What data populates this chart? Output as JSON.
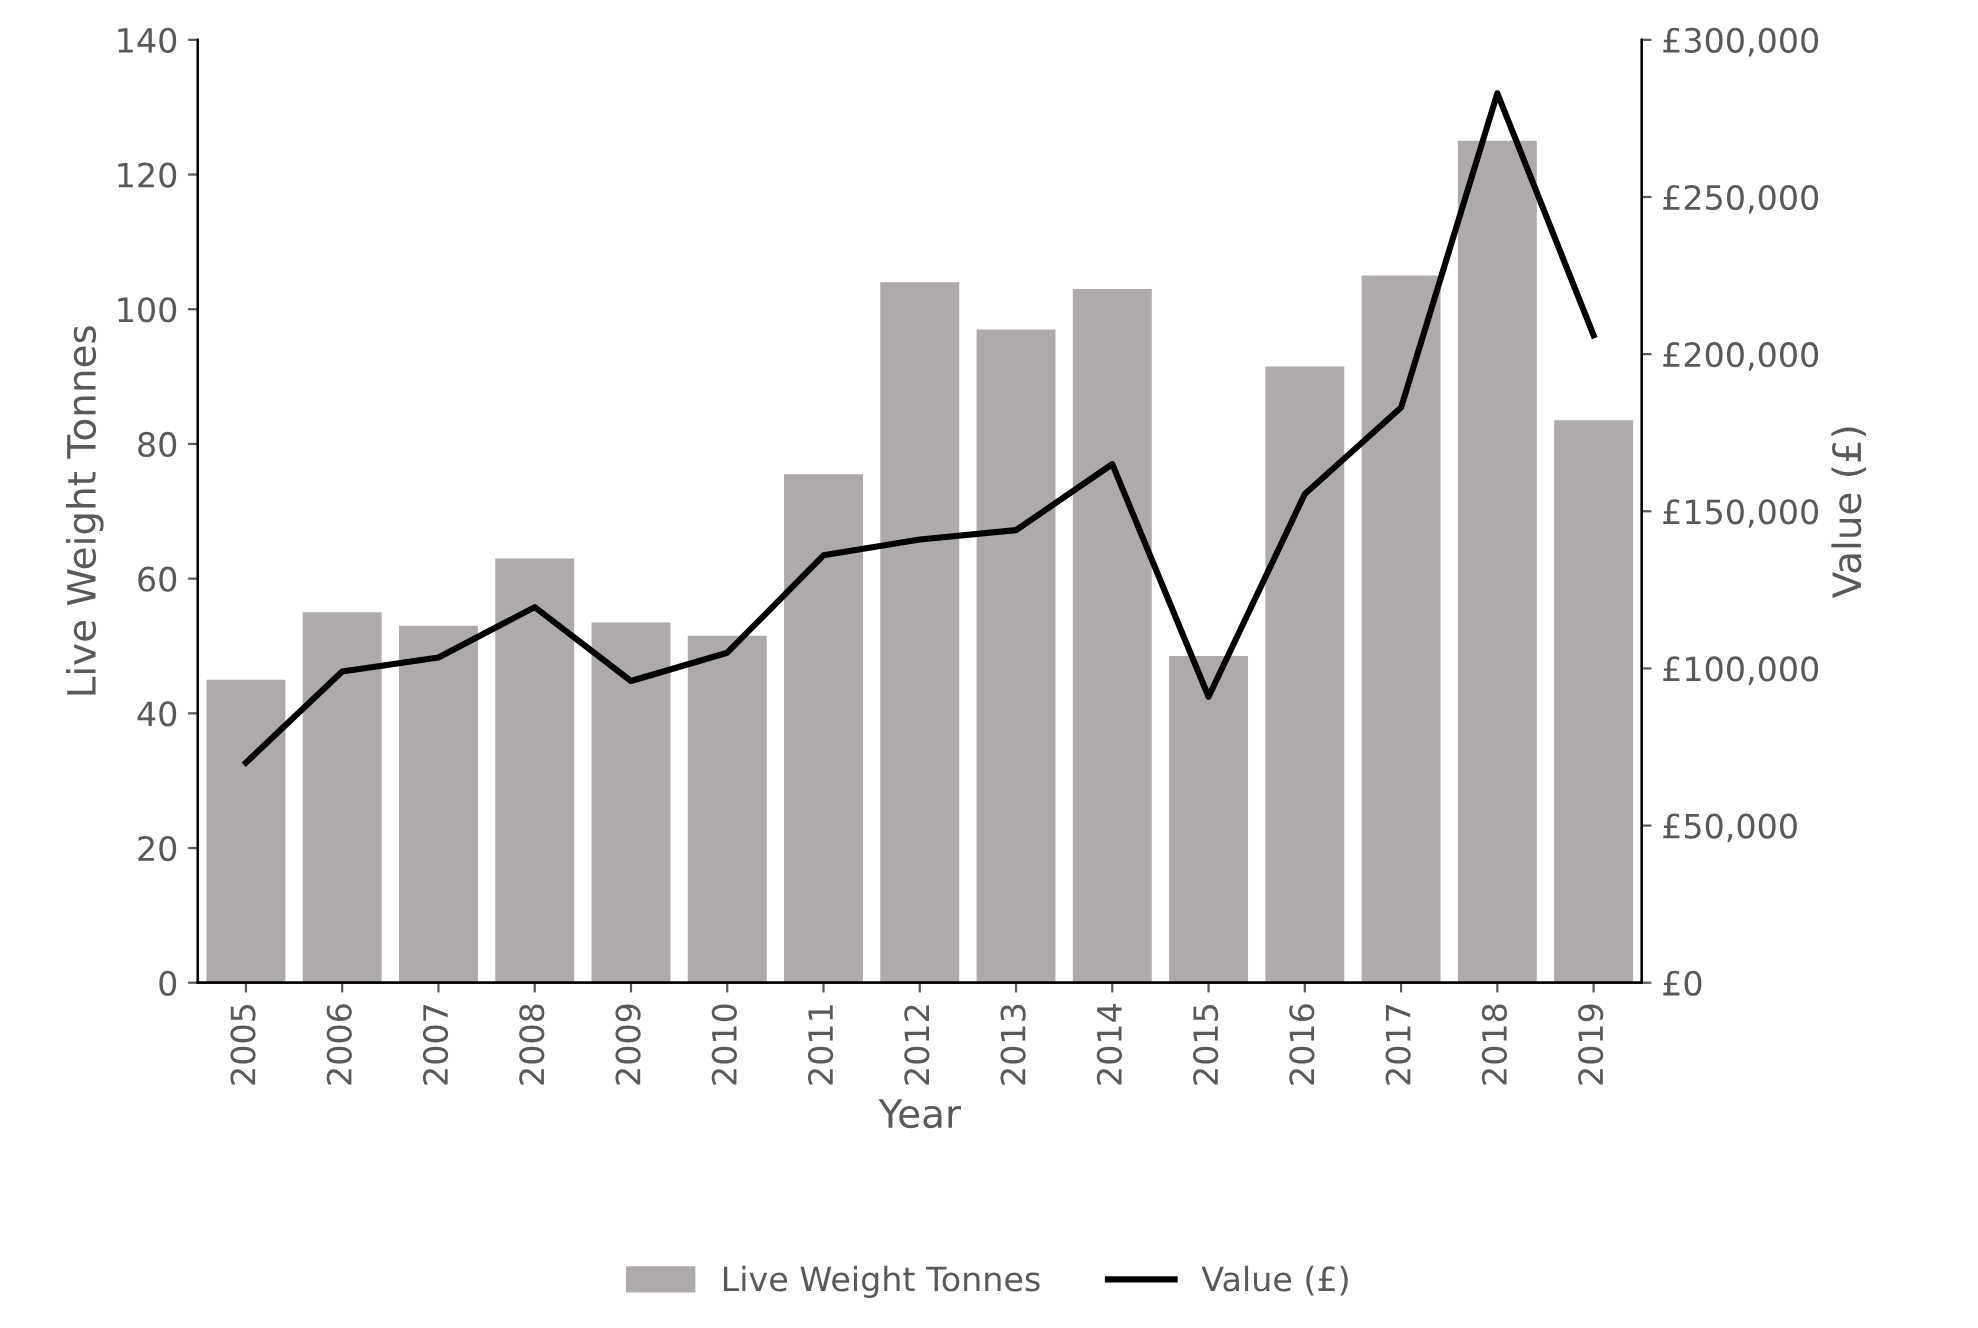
{
  "chart_data": {
    "type": "bar",
    "xlabel": "Year",
    "ylabel": "Live Weight Tonnes",
    "y2label": "Value (£)",
    "categories": [
      "2005",
      "2006",
      "2007",
      "2008",
      "2009",
      "2010",
      "2011",
      "2012",
      "2013",
      "2014",
      "2015",
      "2016",
      "2017",
      "2018",
      "2019"
    ],
    "series": [
      {
        "name": "Live Weight Tonnes",
        "color": "#aeaaaa",
        "values": [
          45,
          55,
          53,
          63,
          53.5,
          51.5,
          75.5,
          104,
          97,
          103,
          48.5,
          91.5,
          105,
          125,
          83.5
        ]
      },
      {
        "name": "Value (£)",
        "type": "line",
        "axis": "y2",
        "color": "#000000",
        "values": [
          70000,
          99000,
          103500,
          119500,
          96000,
          105000,
          136000,
          141000,
          144000,
          165000,
          91000,
          155500,
          183000,
          283000,
          206000
        ]
      }
    ],
    "ylim": [
      0,
      140
    ],
    "yticks": [
      0,
      20,
      40,
      60,
      80,
      100,
      120,
      140
    ],
    "y2lim": [
      0,
      300000
    ],
    "y2ticks": [
      {
        "value": 0,
        "label": "£0"
      },
      {
        "value": 50000,
        "label": "£50,000"
      },
      {
        "value": 100000,
        "label": "£100,000"
      },
      {
        "value": 150000,
        "label": "£150,000"
      },
      {
        "value": 200000,
        "label": "£200,000"
      },
      {
        "value": 250000,
        "label": "£250,000"
      },
      {
        "value": 300000,
        "label": "£300,000"
      }
    ],
    "grid": false,
    "legend": "bottom"
  }
}
